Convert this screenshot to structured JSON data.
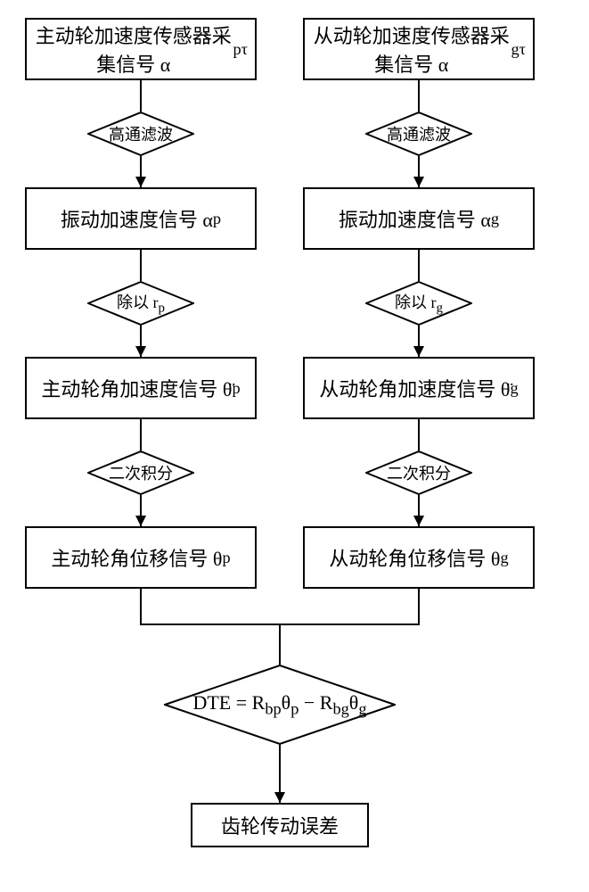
{
  "layout": {
    "colLeftX": 158,
    "colRightX": 470,
    "rectW": 260,
    "rectH": 70,
    "diamondW": 120,
    "diamondH": 50,
    "bigDiamondW": 260,
    "bigDiamondH": 90,
    "fontsize_rect": 22,
    "fontsize_diamond": 18,
    "fontsize_bigdiamond": 22,
    "row1Y": 20,
    "diamond1Y": 125,
    "row2Y": 210,
    "diamond2Y": 315,
    "row3Y": 400,
    "diamond3Y": 505,
    "row4Y": 590,
    "mergeY": 700,
    "bigDiamondY": 745,
    "row5Y": 900,
    "row5W": 200,
    "stroke": "#000000",
    "bg": "#ffffff"
  },
  "left": {
    "r1": "主动轮加速度传感器采集信号 α<sub>pτ</sub>",
    "d1": "高通滤波",
    "r2": "振动加速度信号 α<sub>p</sub>",
    "d2": "除以 r<sub>p</sub>",
    "r3": "主动轮角加速度信号 θ̈<sub>p</sub>",
    "d3": "二次积分",
    "r4": "主动轮角位移信号 θ<sub>p</sub>"
  },
  "right": {
    "r1": "从动轮加速度传感器采集信号 α<sub>gτ</sub>",
    "d1": "高通滤波",
    "r2": "振动加速度信号 α<sub>g</sub>",
    "d2": "除以 r<sub>g</sub>",
    "r3": "从动轮角加速度信号 θ̈<sub>g</sub>",
    "d3": "二次积分",
    "r4": "从动轮角位移信号 θ<sub>g</sub>"
  },
  "merge": {
    "formula": "DTE = R<sub>bp</sub>θ<sub>p</sub> − R<sub>bg</sub>θ<sub>g</sub>",
    "result": "齿轮传动误差"
  }
}
